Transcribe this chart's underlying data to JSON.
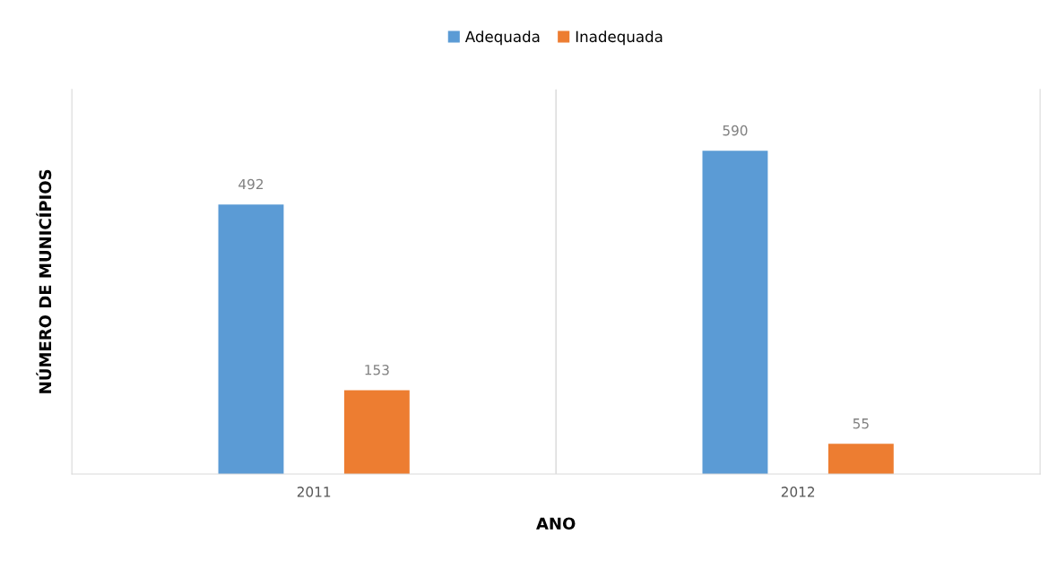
{
  "chart_data": {
    "type": "bar",
    "xlabel": "ANO",
    "ylabel": "NÚMERO DE MUNICÍPIOS",
    "categories": [
      "2011",
      "2012"
    ],
    "series": [
      {
        "name": "Adequada",
        "color": "#5b9bd5",
        "values": [
          492,
          590
        ]
      },
      {
        "name": "Inadequada",
        "color": "#ed7d31",
        "values": [
          153,
          55
        ]
      }
    ],
    "data_labels": true,
    "legend": "top",
    "tick_labels": "x",
    "grid": false
  }
}
